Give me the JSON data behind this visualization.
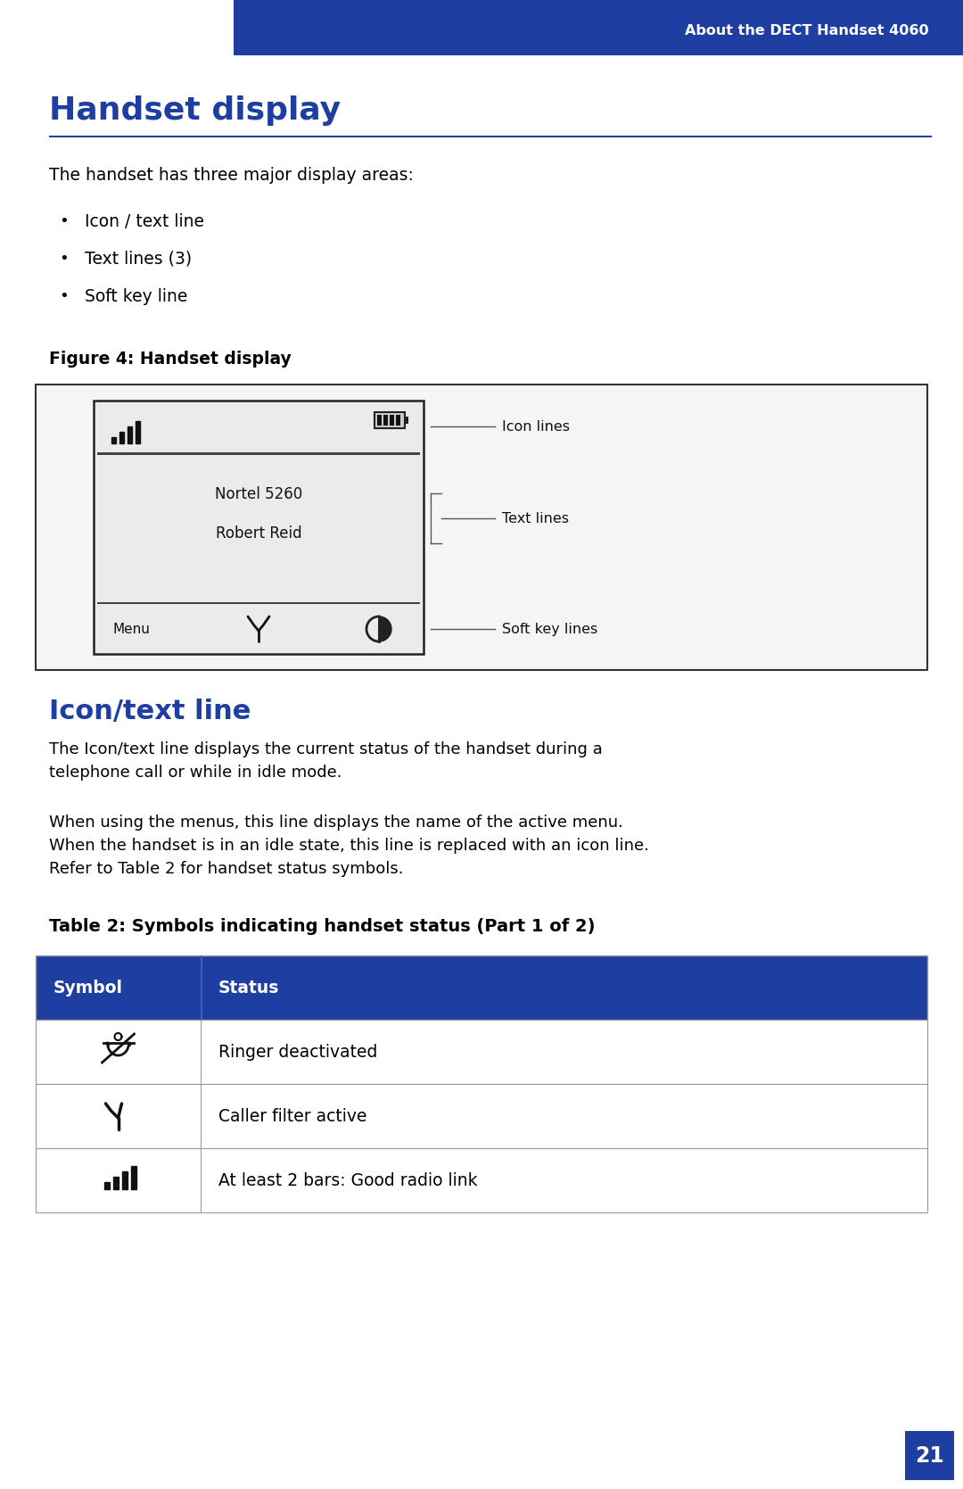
{
  "bg_color": "#ffffff",
  "header_bg": "#1e3ea1",
  "header_text": "About the DECT Handset 4060",
  "header_text_color": "#ffffff",
  "title1": "Handset display",
  "title1_color": "#1e3ea1",
  "title1_sep_color": "#1e3ea1",
  "body_text_color": "#000000",
  "body_intro": "The handset has three major display areas:",
  "bullets": [
    "Icon / text line",
    "Text lines (3)",
    "Soft key line"
  ],
  "figure_caption": "Figure 4: Handset display",
  "screen_line1": "Nortel 5260",
  "screen_line2": "Robert Reid",
  "screen_menu": "Menu",
  "icon_lines_label": "Icon lines",
  "text_lines_label": "Text lines",
  "soft_key_label": "Soft key lines",
  "title2": "Icon/text line",
  "title2_color": "#1e3ea1",
  "para1_lines": [
    "The Icon/text line displays the current status of the handset during a",
    "telephone call or while in idle mode."
  ],
  "para2_lines": [
    "When using the menus, this line displays the name of the active menu.",
    "When the handset is in an idle state, this line is replaced with an icon line.",
    "Refer to Table 2 for handset status symbols."
  ],
  "table_caption": "Table 2: Symbols indicating handset status (Part 1 of 2)",
  "table_header": [
    "Symbol",
    "Status"
  ],
  "table_header_bg": "#1e3ea1",
  "table_header_color": "#ffffff",
  "table_row_statuses": [
    "Ringer deactivated",
    "Caller filter active",
    "At least 2 bars: Good radio link"
  ],
  "table_border_color": "#999999",
  "page_number": "21",
  "page_number_bg": "#1e3ea1",
  "page_number_color": "#ffffff"
}
